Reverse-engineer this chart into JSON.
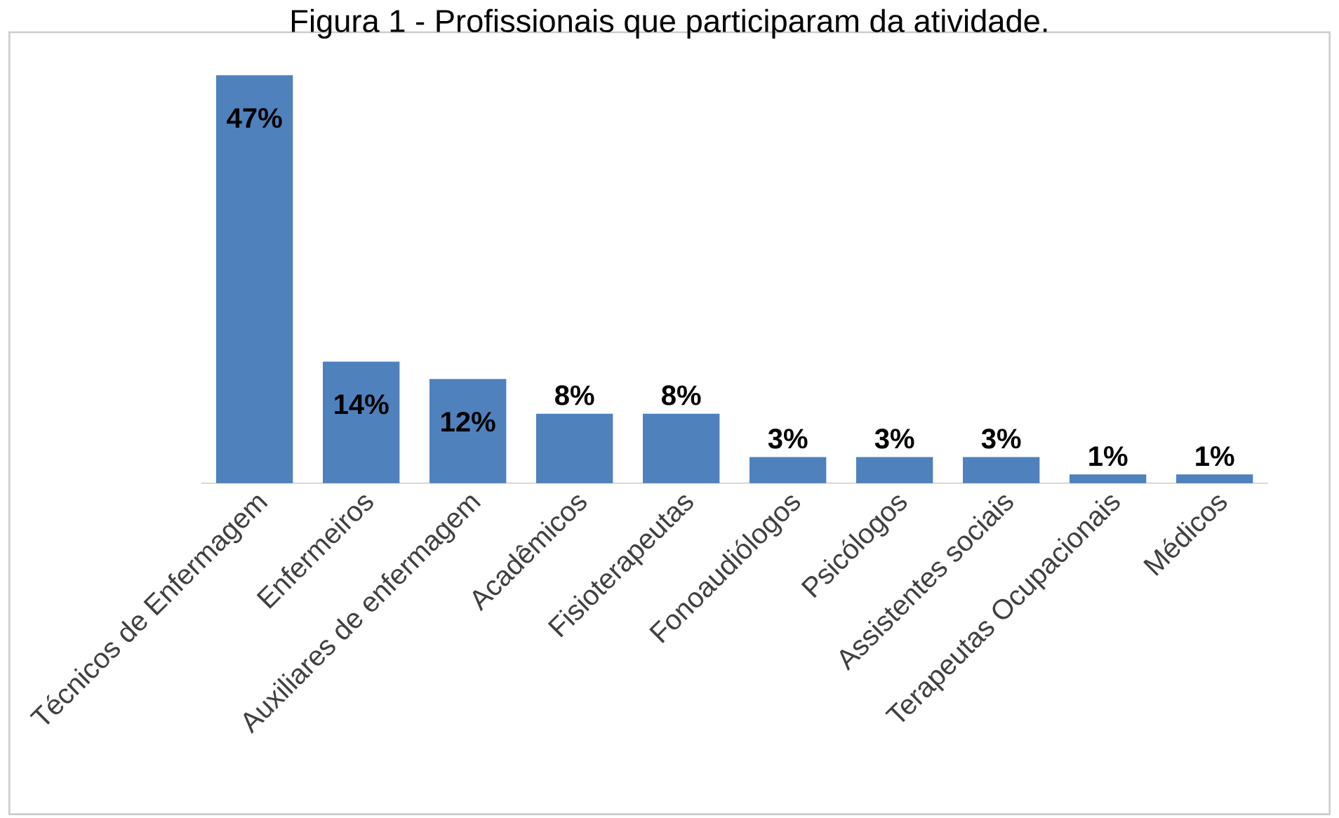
{
  "chart_data": {
    "type": "bar",
    "title": "Figura 1 - Profissionais que participaram da atividade.",
    "categories": [
      "Técnicos de Enfermagem",
      "Enfermeiros",
      "Auxiliares de enfermagem",
      "Acadêmicos",
      "Fisioterapeutas",
      "Fonoaudiólogos",
      "Psicólogos",
      "Assistentes sociais",
      "Terapeutas Ocupacionais",
      "Médicos"
    ],
    "values": [
      47,
      14,
      12,
      8,
      8,
      3,
      3,
      3,
      1,
      1
    ],
    "value_labels": [
      "47%",
      "14%",
      "12%",
      "8%",
      "8%",
      "3%",
      "3%",
      "3%",
      "1%",
      "1%"
    ],
    "color": "#4f81bd"
  }
}
